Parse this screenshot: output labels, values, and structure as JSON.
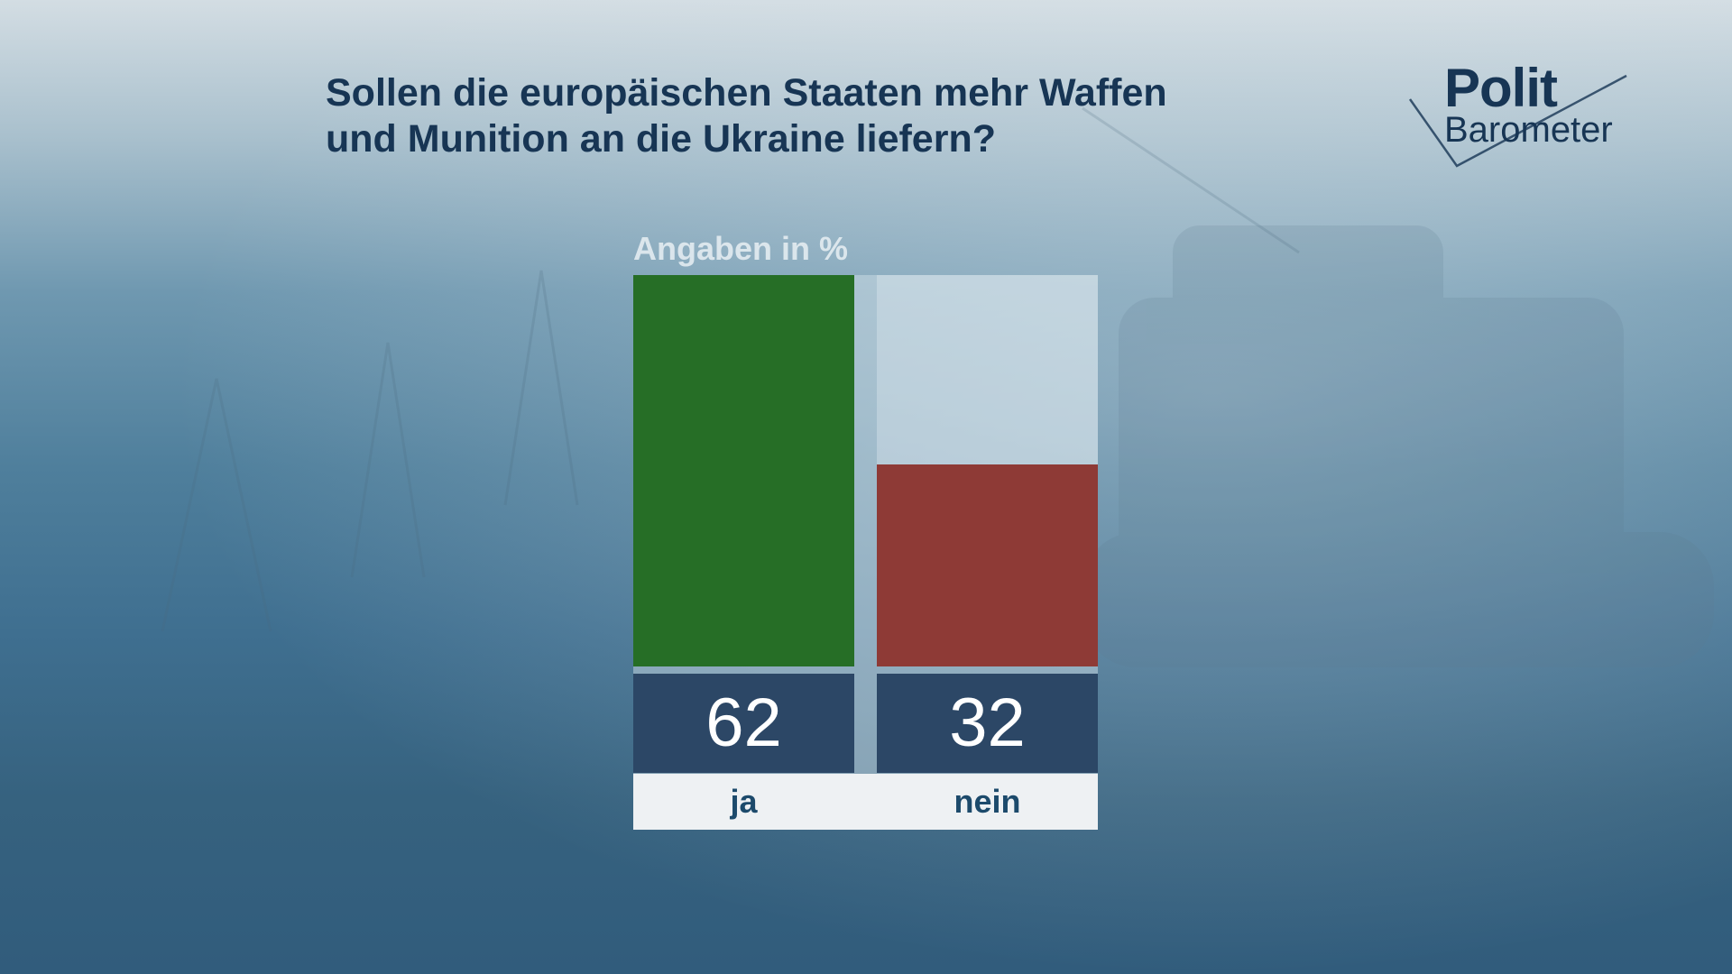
{
  "title_lines": [
    "Sollen die europäischen Staaten mehr Waffen",
    "und Munition an die Ukraine liefern?"
  ],
  "logo": {
    "line1": "Polit",
    "line2": "Barometer"
  },
  "chart_data": {
    "type": "bar",
    "unit_label": "Angaben in %",
    "categories": [
      "ja",
      "nein"
    ],
    "values": [
      62,
      32
    ],
    "ylim": [
      0,
      62
    ],
    "value_labels": [
      "62",
      "32"
    ],
    "colors": {
      "ja": "#266e26",
      "nein": "#8e3a36"
    },
    "grid": false,
    "legend": "none"
  }
}
